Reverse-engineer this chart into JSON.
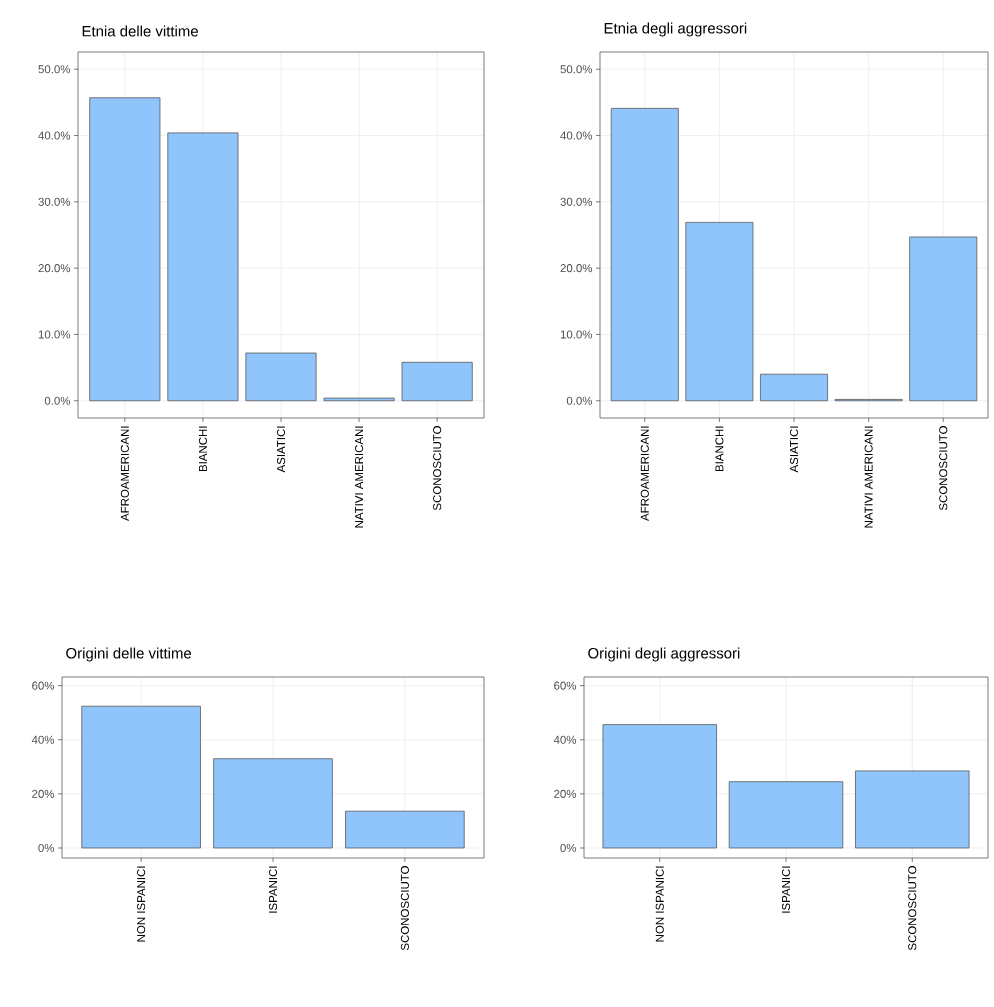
{
  "chart_data": [
    {
      "type": "bar",
      "title": "Etnia delle vittime",
      "categories": [
        "AFROAMERICANI",
        "BIANCHI",
        "ASIATICI",
        "NATIVI AMERICANI",
        "SCONOSCIUTO"
      ],
      "values": [
        45.7,
        40.4,
        7.2,
        0.4,
        5.8
      ],
      "color": "#8fc5fb",
      "ylim": [
        -2.6,
        52.6
      ],
      "yticks": [
        {
          "value": 0,
          "label": "0.0%"
        },
        {
          "value": 10,
          "label": "10.0%"
        },
        {
          "value": 20,
          "label": "20.0%"
        },
        {
          "value": 30,
          "label": "30.0%"
        },
        {
          "value": 40,
          "label": "40.0%"
        },
        {
          "value": 50,
          "label": "50.0%"
        }
      ],
      "grid": true
    },
    {
      "type": "bar",
      "title": "Etnia degli aggressori",
      "categories": [
        "AFROAMERICANI",
        "BIANCHI",
        "ASIATICI",
        "NATIVI AMERICANI",
        "SCONOSCIUTO"
      ],
      "values": [
        44.1,
        26.9,
        4.0,
        0.2,
        24.7
      ],
      "color": "#8fc5fb",
      "ylim": [
        -2.6,
        52.6
      ],
      "yticks": [
        {
          "value": 0,
          "label": "0.0%"
        },
        {
          "value": 10,
          "label": "10.0%"
        },
        {
          "value": 20,
          "label": "20.0%"
        },
        {
          "value": 30,
          "label": "30.0%"
        },
        {
          "value": 40,
          "label": "40.0%"
        },
        {
          "value": 50,
          "label": "50.0%"
        }
      ],
      "grid": true
    },
    {
      "type": "bar",
      "title": "Origini delle vittime",
      "categories": [
        "NON ISPANICI",
        "ISPANICI",
        "SCONOSCIUTO"
      ],
      "values": [
        52.4,
        33.0,
        13.6
      ],
      "color": "#8fc5fb",
      "ylim": [
        -3.7,
        63.2
      ],
      "yticks": [
        {
          "value": 0,
          "label": "0%"
        },
        {
          "value": 20,
          "label": "20%"
        },
        {
          "value": 40,
          "label": "40%"
        },
        {
          "value": 60,
          "label": "60%"
        }
      ],
      "grid": true
    },
    {
      "type": "bar",
      "title": "Origini degli aggressori",
      "categories": [
        "NON ISPANICI",
        "ISPANICI",
        "SCONOSCIUTO"
      ],
      "values": [
        45.6,
        24.5,
        28.5
      ],
      "color": "#8fc5fb",
      "ylim": [
        -3.7,
        63.2
      ],
      "yticks": [
        {
          "value": 0,
          "label": "0%"
        },
        {
          "value": 20,
          "label": "20%"
        },
        {
          "value": 40,
          "label": "40%"
        },
        {
          "value": 60,
          "label": "60%"
        }
      ],
      "grid": true
    }
  ]
}
